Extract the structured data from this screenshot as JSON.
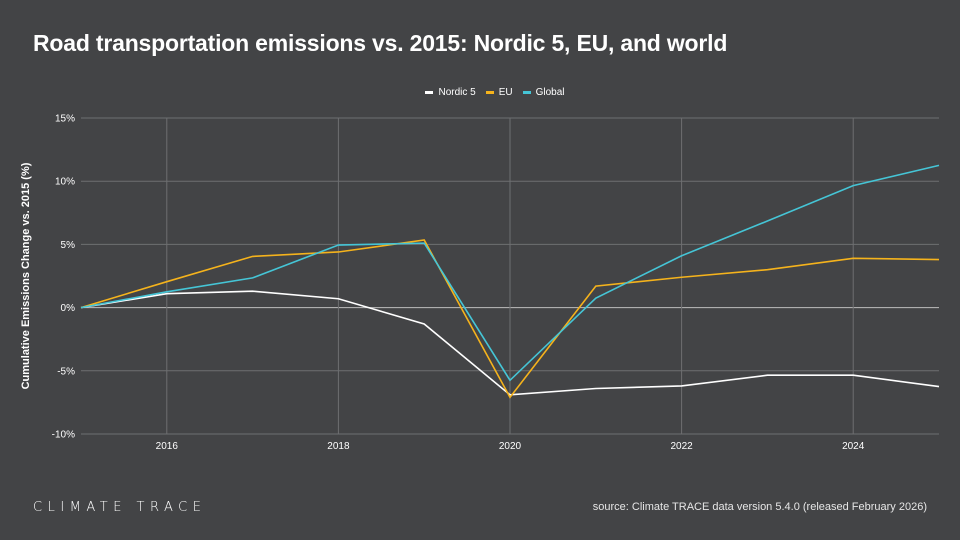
{
  "title": "Road transportation emissions vs. 2015: Nordic 5, EU, and world",
  "brand": "CLIMATE TRACE",
  "source": "source: Climate TRACE data version 5.4.0 (released February 2026)",
  "chart_data": {
    "type": "line",
    "title": "Road transportation emissions vs. 2015: Nordic 5, EU, and world",
    "xlabel": "",
    "ylabel": "Cumulative Emissions Change vs. 2015 (%)",
    "x": [
      2015,
      2016,
      2017,
      2018,
      2019,
      2020,
      2021,
      2022,
      2023,
      2024,
      2025
    ],
    "xlim": [
      2015,
      2025
    ],
    "xticks": [
      2016,
      2018,
      2020,
      2022,
      2024
    ],
    "ylim": [
      -10,
      15
    ],
    "yticks": [
      -10,
      -5,
      0,
      5,
      10,
      15
    ],
    "ytick_labels": [
      "-10%",
      "-5%",
      "0%",
      "5%",
      "10%",
      "15%"
    ],
    "grid": true,
    "legend_position": "top-center",
    "series": [
      {
        "name": "Nordic 5",
        "color": "#ffffff",
        "values": [
          0,
          1.1,
          1.3,
          0.7,
          -1.3,
          -6.9,
          -6.4,
          -6.2,
          -5.35,
          -5.35,
          -6.25
        ]
      },
      {
        "name": "EU",
        "color": "#f5b31c",
        "values": [
          0,
          2.05,
          4.05,
          4.4,
          5.35,
          -7.1,
          1.7,
          2.4,
          3.0,
          3.9,
          3.8
        ]
      },
      {
        "name": "Global",
        "color": "#45c5d6",
        "values": [
          0,
          1.25,
          2.35,
          4.95,
          5.1,
          -5.75,
          0.75,
          4.1,
          6.85,
          9.65,
          11.25
        ]
      }
    ]
  }
}
